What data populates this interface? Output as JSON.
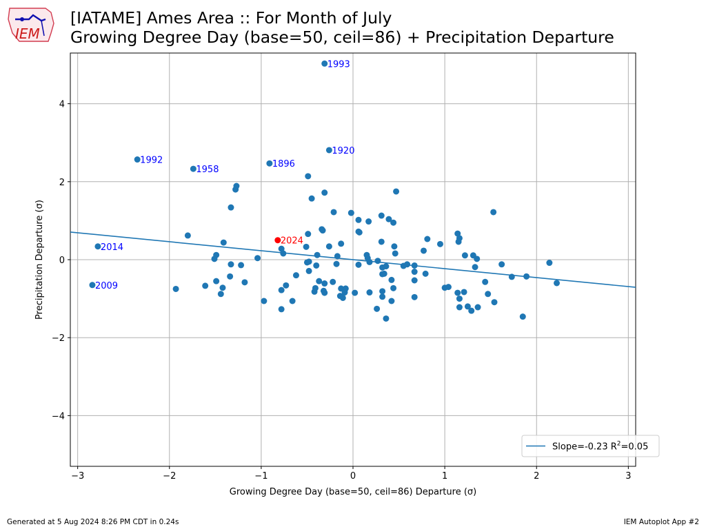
{
  "title": {
    "line1": "[IATAME] Ames Area :: For Month of July",
    "line2": "Growing Degree Day (base=50, ceil=86) + Precipitation Departure"
  },
  "logo": {
    "text": "IEM"
  },
  "footer": {
    "left": "Generated at 5 Aug 2024 8:26 PM CDT in 0.24s",
    "right": "IEM Autoplot App #2"
  },
  "colors": {
    "point": "#1f77b4",
    "highlight": "#ff0000",
    "label": "#0000ff",
    "grid": "#b0b0b0"
  },
  "chart_data": {
    "type": "scatter",
    "xlabel": "Growing Degree Day (base=50, ceil=86) Departure (σ)",
    "ylabel": "Precipitation Departure (σ)",
    "xlim": [
      -3.08,
      3.08
    ],
    "ylim": [
      -5.3,
      5.3
    ],
    "xticks": [
      -3,
      -2,
      -1,
      0,
      1,
      2,
      3
    ],
    "xtick_labels": [
      "−3",
      "−2",
      "−1",
      "0",
      "1",
      "2",
      "3"
    ],
    "yticks": [
      -4,
      -2,
      0,
      2,
      4
    ],
    "ytick_labels": [
      "−4",
      "−2",
      "0",
      "2",
      "4"
    ],
    "grid": true,
    "legend_position": "lower-right",
    "regression": {
      "slope": -0.23,
      "intercept": 0.0,
      "label_prefix": "Slope=-0.23 R",
      "label_sup": "2",
      "label_suffix": "=0.05"
    },
    "labeled_points": [
      {
        "year": "1993",
        "x": -0.31,
        "y": 5.03
      },
      {
        "year": "1920",
        "x": -0.26,
        "y": 2.81
      },
      {
        "year": "1992",
        "x": -2.35,
        "y": 2.57
      },
      {
        "year": "1896",
        "x": -0.91,
        "y": 2.47
      },
      {
        "year": "1958",
        "x": -1.74,
        "y": 2.33
      },
      {
        "year": "2014",
        "x": -2.78,
        "y": 0.34
      },
      {
        "year": "2009",
        "x": -2.84,
        "y": -0.65
      }
    ],
    "highlight": {
      "year": "2024",
      "x": -0.82,
      "y": 0.5
    },
    "points": [
      [
        -0.49,
        2.14
      ],
      [
        -1.27,
        1.89
      ],
      [
        -1.28,
        1.8
      ],
      [
        -0.31,
        1.72
      ],
      [
        0.47,
        1.75
      ],
      [
        -0.45,
        1.57
      ],
      [
        -1.33,
        1.34
      ],
      [
        -0.21,
        1.22
      ],
      [
        -0.02,
        1.2
      ],
      [
        1.53,
        1.22
      ],
      [
        0.31,
        1.13
      ],
      [
        0.06,
        1.02
      ],
      [
        0.17,
        0.98
      ],
      [
        0.39,
        1.04
      ],
      [
        0.44,
        0.95
      ],
      [
        0.06,
        0.72
      ],
      [
        0.07,
        0.7
      ],
      [
        -0.34,
        0.78
      ],
      [
        -0.33,
        0.75
      ],
      [
        -0.49,
        0.66
      ],
      [
        -1.8,
        0.62
      ],
      [
        1.14,
        0.67
      ],
      [
        1.16,
        0.55
      ],
      [
        1.15,
        0.46
      ],
      [
        0.81,
        0.53
      ],
      [
        -1.41,
        0.44
      ],
      [
        -0.13,
        0.41
      ],
      [
        0.31,
        0.46
      ],
      [
        0.95,
        0.4
      ],
      [
        -0.51,
        0.33
      ],
      [
        -0.26,
        0.34
      ],
      [
        0.45,
        0.34
      ],
      [
        -0.78,
        0.28
      ],
      [
        -0.76,
        0.16
      ],
      [
        0.46,
        0.16
      ],
      [
        0.77,
        0.23
      ],
      [
        1.22,
        0.11
      ],
      [
        1.31,
        0.11
      ],
      [
        1.35,
        0.02
      ],
      [
        -1.49,
        0.12
      ],
      [
        -1.51,
        0.02
      ],
      [
        -1.04,
        0.04
      ],
      [
        -0.39,
        0.12
      ],
      [
        -0.17,
        0.09
      ],
      [
        0.15,
        0.12
      ],
      [
        0.16,
        0.04
      ],
      [
        0.18,
        -0.06
      ],
      [
        0.27,
        -0.03
      ],
      [
        -0.5,
        -0.07
      ],
      [
        -0.48,
        -0.05
      ],
      [
        -0.4,
        -0.15
      ],
      [
        -0.18,
        -0.11
      ],
      [
        0.06,
        -0.13
      ],
      [
        0.32,
        -0.2
      ],
      [
        0.36,
        -0.17
      ],
      [
        0.55,
        -0.16
      ],
      [
        0.59,
        -0.12
      ],
      [
        0.67,
        -0.15
      ],
      [
        1.62,
        -0.12
      ],
      [
        2.14,
        -0.08
      ],
      [
        -1.33,
        -0.12
      ],
      [
        -1.22,
        -0.14
      ],
      [
        -0.48,
        -0.29
      ],
      [
        0.34,
        -0.36
      ],
      [
        0.32,
        -0.37
      ],
      [
        0.67,
        -0.31
      ],
      [
        0.79,
        -0.36
      ],
      [
        1.33,
        -0.19
      ],
      [
        -1.34,
        -0.43
      ],
      [
        -0.62,
        -0.4
      ],
      [
        0.42,
        -0.52
      ],
      [
        0.67,
        -0.53
      ],
      [
        1.44,
        -0.57
      ],
      [
        1.73,
        -0.44
      ],
      [
        1.89,
        -0.43
      ],
      [
        -1.49,
        -0.55
      ],
      [
        -1.18,
        -0.58
      ],
      [
        -0.37,
        -0.55
      ],
      [
        -0.31,
        -0.61
      ],
      [
        -0.22,
        -0.57
      ],
      [
        2.22,
        -0.6
      ],
      [
        -1.61,
        -0.67
      ],
      [
        -1.42,
        -0.72
      ],
      [
        -0.73,
        -0.66
      ],
      [
        -0.41,
        -0.73
      ],
      [
        -0.13,
        -0.74
      ],
      [
        -0.08,
        -0.74
      ],
      [
        0.44,
        -0.73
      ],
      [
        1.0,
        -0.72
      ],
      [
        1.04,
        -0.7
      ],
      [
        -1.93,
        -0.75
      ],
      [
        -0.78,
        -0.78
      ],
      [
        -0.42,
        -0.82
      ],
      [
        -0.32,
        -0.8
      ],
      [
        -0.31,
        -0.85
      ],
      [
        -0.09,
        -0.84
      ],
      [
        0.02,
        -0.85
      ],
      [
        0.18,
        -0.84
      ],
      [
        0.32,
        -0.81
      ],
      [
        1.14,
        -0.85
      ],
      [
        1.21,
        -0.83
      ],
      [
        1.47,
        -0.88
      ],
      [
        -1.44,
        -0.88
      ],
      [
        -0.14,
        -0.93
      ],
      [
        -0.11,
        -0.98
      ],
      [
        0.32,
        -0.95
      ],
      [
        0.67,
        -0.96
      ],
      [
        1.16,
        -1.0
      ],
      [
        -0.97,
        -1.06
      ],
      [
        -0.66,
        -1.06
      ],
      [
        0.42,
        -1.06
      ],
      [
        1.54,
        -1.09
      ],
      [
        -0.78,
        -1.27
      ],
      [
        0.26,
        -1.26
      ],
      [
        1.16,
        -1.22
      ],
      [
        1.25,
        -1.2
      ],
      [
        1.29,
        -1.31
      ],
      [
        1.36,
        -1.22
      ],
      [
        0.36,
        -1.51
      ],
      [
        1.85,
        -1.46
      ]
    ]
  }
}
